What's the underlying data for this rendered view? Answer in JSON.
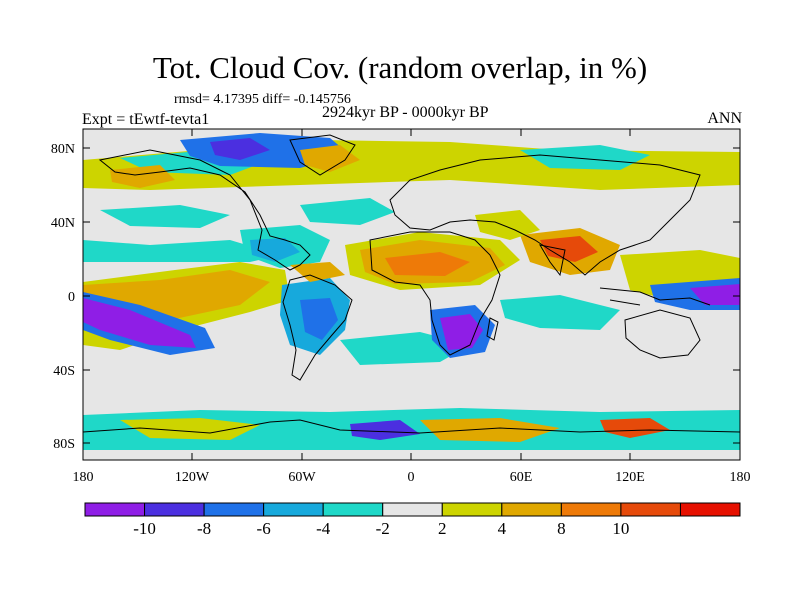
{
  "title": "Tot. Cloud Cov. (random overlap, in %)",
  "stats": "rmsd= 4.17395 diff= -0.145756",
  "period": "2924kyr BP - 0000kyr BP",
  "experiment": "Expt = tEwtf-tevta1",
  "season": "ANN",
  "axes": {
    "lat_labels": [
      "80N",
      "40N",
      "0",
      "40S",
      "80S"
    ],
    "lon_labels": [
      "180",
      "120W",
      "60W",
      "0",
      "60E",
      "120E",
      "180"
    ]
  },
  "colorbar": {
    "labels": [
      "-10",
      "-8",
      "-6",
      "-4",
      "-2",
      "2",
      "4",
      "8",
      "10"
    ],
    "colors": [
      "#8f1ee6",
      "#4b2fe0",
      "#1f71e8",
      "#17a9dc",
      "#1fd8c8",
      "#e6e6e6",
      "#cdd400",
      "#e0a800",
      "#ee7a08",
      "#e64a0a",
      "#e61000"
    ]
  }
}
